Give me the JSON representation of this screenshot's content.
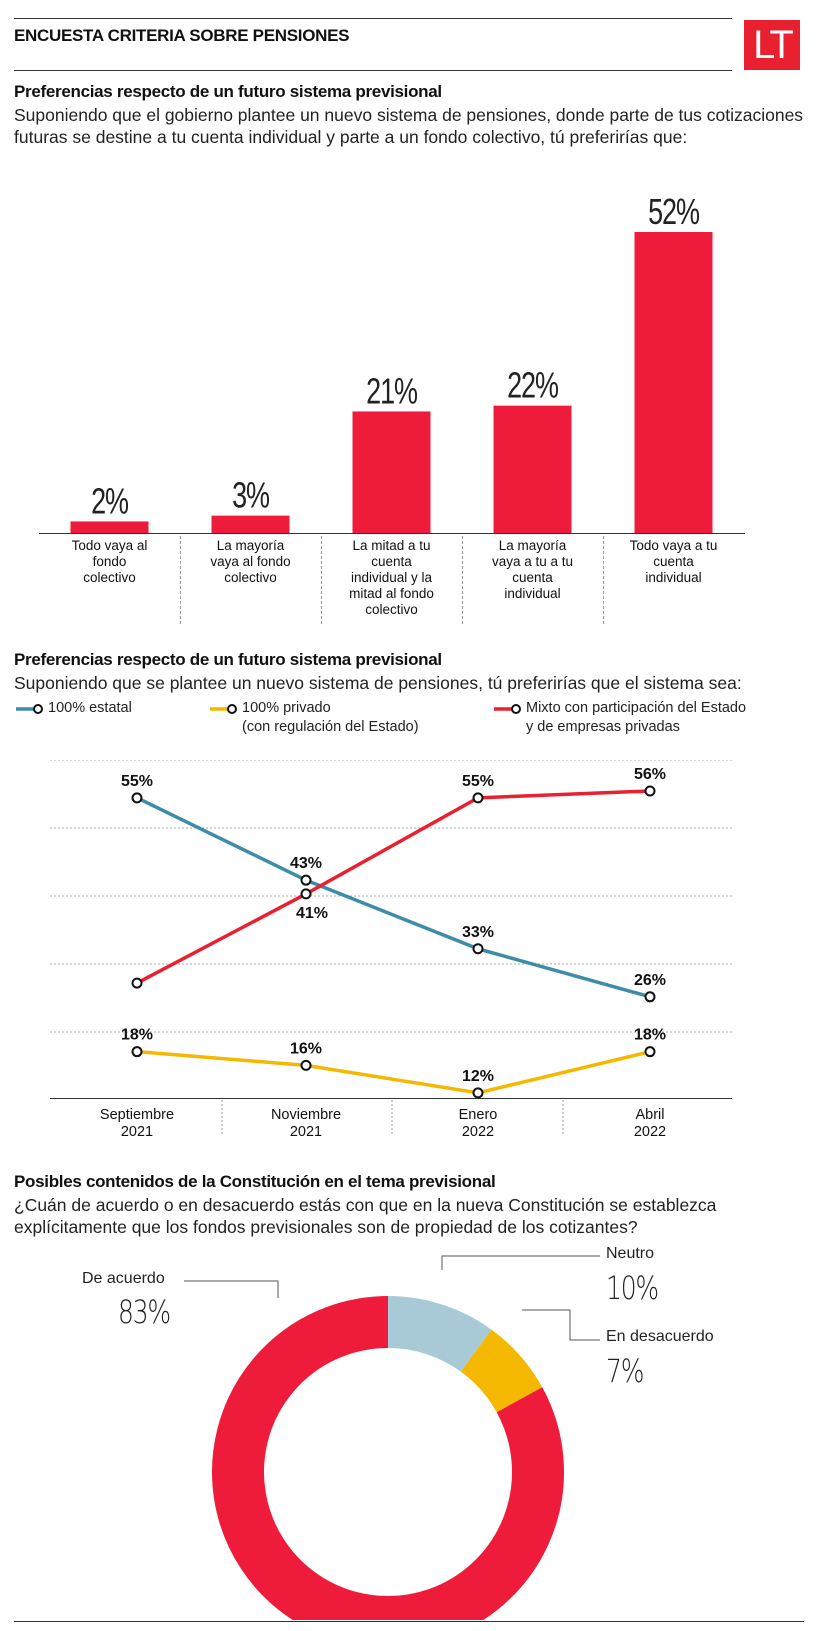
{
  "header": {
    "title": "ENCUESTA CRITERIA SOBRE PENSIONES",
    "logo": "LT"
  },
  "section1": {
    "title": "Preferencias respecto de un futuro sistema previsional",
    "subtitle": "Suponiendo que el gobierno plantee un nuevo sistema de pensiones, donde parte de tus cotizaciones futuras se destine a tu cuenta individual y parte a un fondo colectivo, tú preferirías que:"
  },
  "section2": {
    "title": "Preferencias respecto de un futuro sistema previsional",
    "subtitle": "Suponiendo que se plantee un nuevo sistema de pensiones, tú preferirías que el sistema sea:"
  },
  "section3": {
    "title": "Posibles contenidos de la Constitución en el tema previsional",
    "subtitle": "¿Cuán de acuerdo o en desacuerdo estás con que en la nueva Constitución se establezca explícitamente que los fondos previsionales son de propiedad de los cotizantes?"
  },
  "chart_data": [
    {
      "type": "bar",
      "categories": [
        [
          "Todo vaya al",
          "fondo",
          "colectivo"
        ],
        [
          "La mayoría",
          "vaya al fondo",
          "colectivo"
        ],
        [
          "La mitad a tu",
          "cuenta",
          "individual y la",
          "mitad al fondo",
          "colectivo"
        ],
        [
          "La mayoría",
          "vaya a tu a tu",
          "cuenta",
          "individual"
        ],
        [
          "Todo vaya a tu",
          "cuenta",
          "individual"
        ]
      ],
      "values": [
        2,
        3,
        21,
        22,
        52
      ],
      "value_labels": [
        "2%",
        "3%",
        "21%",
        "22%",
        "52%"
      ],
      "ylim": [
        0,
        52
      ],
      "color": "#ee1c3a"
    },
    {
      "type": "line",
      "x": [
        [
          "Septiembre",
          "2021"
        ],
        [
          "Noviembre",
          "2021"
        ],
        [
          "Enero",
          "2022"
        ],
        [
          "Abril",
          "2022"
        ]
      ],
      "ylim": [
        5,
        60
      ],
      "grid": true,
      "series": [
        {
          "name": "100% estatal",
          "name_lines": [
            "100% estatal"
          ],
          "color": "#3d8ca8",
          "values": [
            55,
            43,
            33,
            26
          ],
          "labels": [
            "55%",
            "43%",
            "33%",
            "26%"
          ]
        },
        {
          "name": "100% privado (con regulación del Estado)",
          "name_lines": [
            "100% privado",
            "(con regulación del Estado)"
          ],
          "color": "#f5b800",
          "values": [
            18,
            16,
            12,
            18
          ],
          "labels": [
            "18%",
            "16%",
            "12%",
            "18%"
          ]
        },
        {
          "name": "Mixto con participación del Estado y de empresas privadas",
          "name_lines": [
            "Mixto con participación del Estado",
            "y de empresas privadas"
          ],
          "color": "#e8202f",
          "values": [
            28,
            41,
            55,
            56
          ],
          "labels": [
            "",
            "41%",
            "55%",
            "56%"
          ]
        }
      ]
    },
    {
      "type": "pie",
      "donut": true,
      "slices": [
        {
          "label": "De acuerdo",
          "value": 83,
          "pct_label": "83%",
          "color": "#ee1c3a"
        },
        {
          "label": "Neutro",
          "value": 10,
          "pct_label": "10%",
          "color": "#a8cad6"
        },
        {
          "label": "En desacuerdo",
          "value": 7,
          "pct_label": "7%",
          "color": "#f5b800"
        }
      ]
    }
  ]
}
